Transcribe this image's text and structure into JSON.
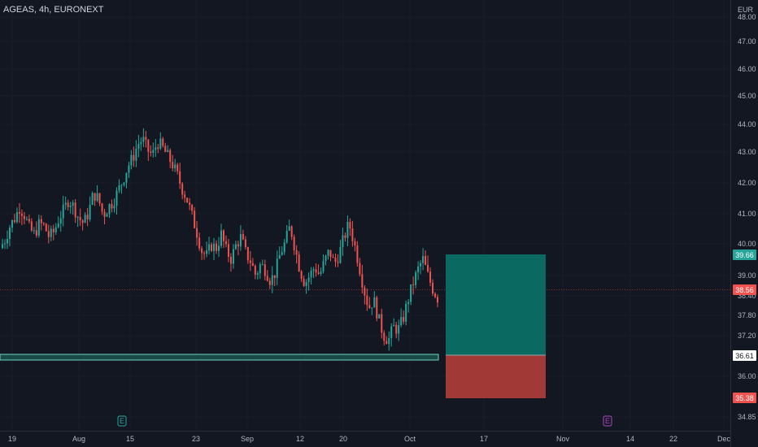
{
  "header": {
    "title": "AGEAS, 4h, EURONEXT"
  },
  "currency": "EUR",
  "colors": {
    "background": "#131722",
    "up": "#26a69a",
    "down": "#ef5350",
    "grid": "#1e222d",
    "target_zone": "#0a6a62",
    "stop_zone": "#a13a36",
    "support_line": "#26a69a"
  },
  "price_axis": {
    "ticks": [
      "48.00",
      "47.00",
      "46.00",
      "45.00",
      "44.00",
      "43.00",
      "42.00",
      "41.00",
      "40.00",
      "39.00",
      "38.40",
      "37.80",
      "37.20",
      "36.00",
      "34.85"
    ]
  },
  "price_tags": {
    "target": {
      "label": "39.66",
      "value": 39.66,
      "color": "#26a69a"
    },
    "current": {
      "label": "38.56",
      "value": 38.56,
      "color": "#ef5350"
    },
    "entry": {
      "label": "36.61",
      "value": 36.61,
      "color": "#ffffff"
    },
    "stop": {
      "label": "35.38",
      "value": 35.38,
      "color": "#ef5350"
    }
  },
  "time_axis": {
    "ticks": [
      "19",
      "Aug",
      "15",
      "23",
      "Sep",
      "12",
      "20",
      "Oct",
      "17",
      "Nov",
      "14",
      "22",
      "Dec"
    ]
  },
  "markers": [
    {
      "label": "E",
      "color": "#26a69a"
    },
    {
      "label": "E",
      "color": "#ab47bc"
    }
  ],
  "chart_data": {
    "type": "candlestick",
    "title": "AGEAS, 4h, EURONEXT",
    "yunit": "EUR",
    "support_level": 36.61,
    "position": {
      "entry": 36.61,
      "target": 39.66,
      "stop": 35.38
    },
    "close_path": [
      40.4,
      40.7,
      41.2,
      41.5,
      41.9,
      41.6,
      41.1,
      40.9,
      41.3,
      41.2,
      40.8,
      41.0,
      41.5,
      41.8,
      42.2,
      41.9,
      41.5,
      41.3,
      41.7,
      42.4,
      42.2,
      41.6,
      41.9,
      42.1,
      42.5,
      42.9,
      43.4,
      43.7,
      44.2,
      44.4,
      44.0,
      43.8,
      44.3,
      44.1,
      43.8,
      43.5,
      43.1,
      42.6,
      42.2,
      41.6,
      41.0,
      40.3,
      40.1,
      40.5,
      40.4,
      40.9,
      40.3,
      40.0,
      40.5,
      40.8,
      40.2,
      39.9,
      39.4,
      39.8,
      39.6,
      39.2,
      39.5,
      40.2,
      40.6,
      41.2,
      40.4,
      39.6,
      39.1,
      39.4,
      39.7,
      39.4,
      39.9,
      40.3,
      39.8,
      40.2,
      40.8,
      41.3,
      40.6,
      39.8,
      38.9,
      38.2,
      38.5,
      37.8,
      37.2,
      37.0,
      37.5,
      37.4,
      37.8,
      38.5,
      39.1,
      39.6,
      40.0,
      39.4,
      38.9,
      38.56
    ]
  }
}
